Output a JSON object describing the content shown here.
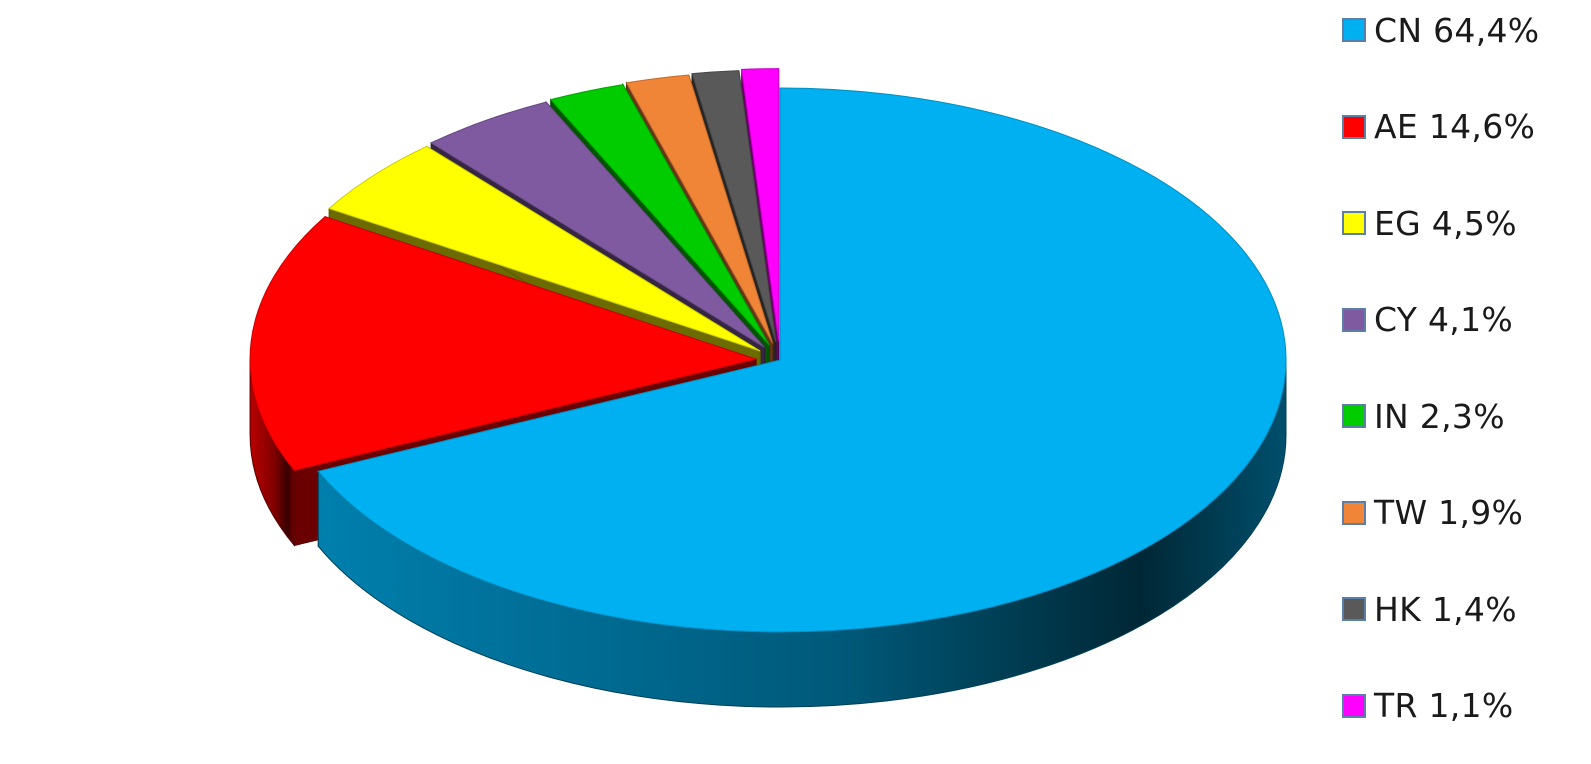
{
  "chart_data": {
    "type": "pie",
    "style": "3d-exploded",
    "title": "",
    "slices": [
      {
        "label": "CN",
        "value": 64.4,
        "value_text": "64,4%",
        "color": "#00b0f0"
      },
      {
        "label": "AE",
        "value": 14.6,
        "value_text": "14,6%",
        "color": "#ff0000"
      },
      {
        "label": "EG",
        "value": 4.5,
        "value_text": "4,5%",
        "color": "#ffff00"
      },
      {
        "label": "CY",
        "value": 4.1,
        "value_text": "4,1%",
        "color": "#7f5aa0"
      },
      {
        "label": "IN",
        "value": 2.3,
        "value_text": "2,3%",
        "color": "#00cc00"
      },
      {
        "label": "TW",
        "value": 1.9,
        "value_text": "1,9%",
        "color": "#f08437"
      },
      {
        "label": "HK",
        "value": 1.4,
        "value_text": "1,4%",
        "color": "#595959"
      },
      {
        "label": "TR",
        "value": 1.1,
        "value_text": "1,1%",
        "color": "#ff00ff"
      }
    ],
    "legend": {
      "position": "right",
      "entries": [
        "CN 64,4%",
        "AE 14,6%",
        "EG 4,5%",
        "CY 4,1%",
        "IN 2,3%",
        "TW 1,9%",
        "HK 1,4%",
        "TR 1,1%"
      ]
    }
  }
}
